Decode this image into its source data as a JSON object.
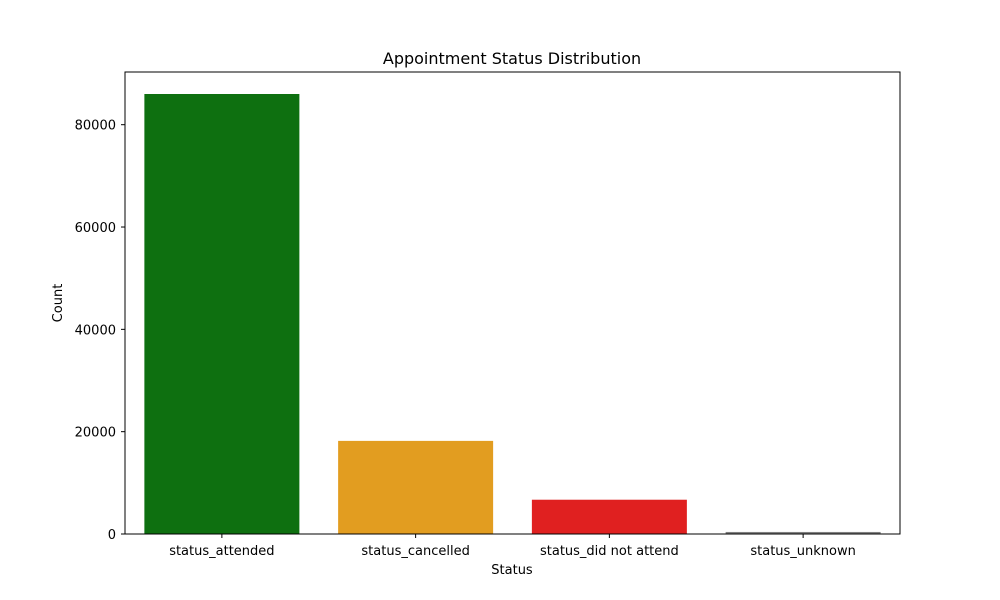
{
  "chart_data": {
    "type": "bar",
    "title": "Appointment Status Distribution",
    "xlabel": "Status",
    "ylabel": "Count",
    "categories": [
      "status_attended",
      "status_cancelled",
      "status_did not attend",
      "status_unknown"
    ],
    "values": [
      86000,
      18200,
      6700,
      400
    ],
    "colors": [
      "#0e7010",
      "#e29d20",
      "#e02020",
      "#808080"
    ],
    "ylim": [
      0,
      90300
    ],
    "yticks": [
      0,
      20000,
      40000,
      60000,
      80000
    ],
    "grid": false,
    "legend": "none"
  }
}
